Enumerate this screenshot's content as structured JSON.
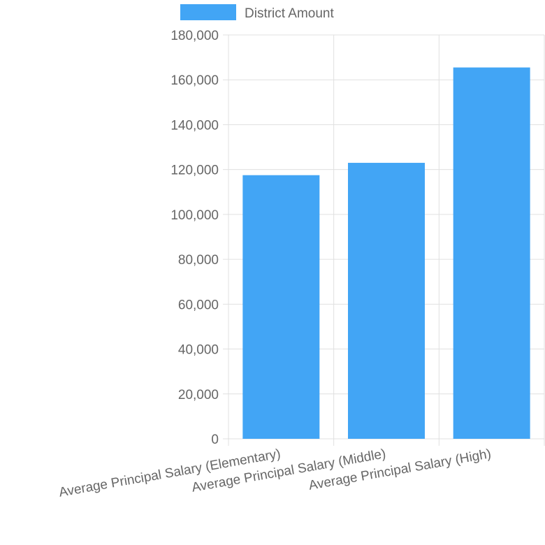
{
  "chart_data": {
    "type": "bar",
    "categories": [
      "Average Principal Salary (Elementary)",
      "Average Principal Salary (Middle)",
      "Average Principal Salary (High)"
    ],
    "series": [
      {
        "name": "District Amount",
        "values": [
          117500,
          123000,
          165500
        ],
        "color": "#42a5f5"
      }
    ],
    "ylim": [
      0,
      180000
    ],
    "yticks": [
      0,
      20000,
      40000,
      60000,
      80000,
      100000,
      120000,
      140000,
      160000,
      180000
    ],
    "ytick_labels": [
      "0",
      "20,000",
      "40,000",
      "60,000",
      "80,000",
      "100,000",
      "120,000",
      "140,000",
      "160,000",
      "180,000"
    ],
    "grid": true,
    "legend": {
      "position": "top",
      "label": "District Amount"
    }
  },
  "colors": {
    "bar": "#42a5f5",
    "grid": "#e0e0e0",
    "text": "#666666"
  }
}
